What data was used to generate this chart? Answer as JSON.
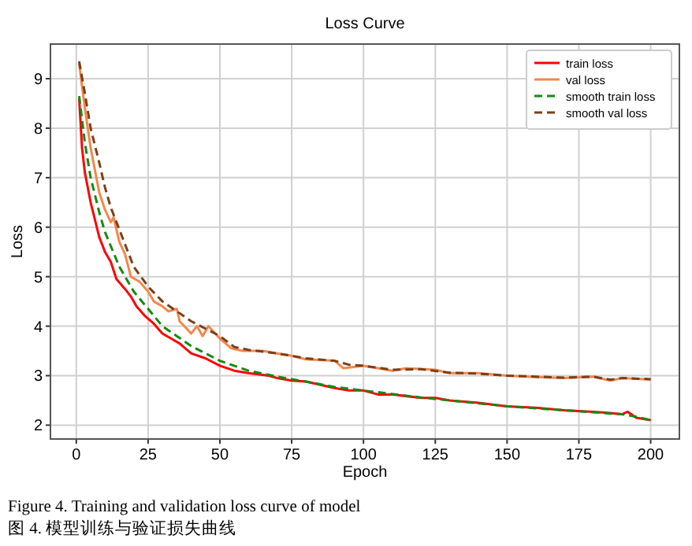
{
  "chart_data": {
    "type": "line",
    "title": "Loss Curve",
    "xlabel": "Epoch",
    "ylabel": "Loss",
    "xlim": [
      -9,
      210
    ],
    "ylim": [
      1.72,
      9.7
    ],
    "xticks": [
      0,
      25,
      50,
      75,
      100,
      125,
      150,
      175,
      200
    ],
    "yticks": [
      2,
      3,
      4,
      5,
      6,
      7,
      8,
      9
    ],
    "grid": true,
    "legend": "top right",
    "series": [
      {
        "name": "train loss",
        "color": "#ff0000",
        "line_style": "solid",
        "x": [
          1,
          2,
          3,
          5,
          8,
          10,
          12,
          14,
          17,
          19,
          21,
          24,
          27,
          30,
          33,
          36,
          40,
          45,
          50,
          55,
          60,
          67,
          70,
          75,
          80,
          90,
          95,
          100,
          105,
          110,
          120,
          125,
          130,
          140,
          150,
          160,
          170,
          180,
          185,
          190,
          192,
          195,
          200
        ],
        "values": [
          8.6,
          7.6,
          7.1,
          6.5,
          5.8,
          5.5,
          5.3,
          4.95,
          4.75,
          4.6,
          4.4,
          4.2,
          4.05,
          3.85,
          3.75,
          3.65,
          3.45,
          3.35,
          3.2,
          3.1,
          3.05,
          3.0,
          2.95,
          2.9,
          2.88,
          2.75,
          2.7,
          2.7,
          2.62,
          2.62,
          2.55,
          2.55,
          2.5,
          2.45,
          2.38,
          2.35,
          2.3,
          2.27,
          2.25,
          2.22,
          2.27,
          2.15,
          2.1
        ]
      },
      {
        "name": "val loss",
        "color": "#f4874b",
        "line_style": "solid",
        "x": [
          1,
          3,
          5,
          8,
          10,
          12,
          13,
          15,
          17,
          19,
          22,
          25,
          27,
          30,
          32,
          35,
          36,
          40,
          42,
          44,
          46,
          50,
          54,
          58,
          65,
          70,
          75,
          80,
          90,
          93,
          100,
          105,
          110,
          115,
          125,
          130,
          140,
          150,
          160,
          170,
          180,
          186,
          190,
          200
        ],
        "values": [
          9.3,
          8.4,
          7.6,
          6.7,
          6.35,
          6.1,
          6.2,
          5.7,
          5.45,
          5.0,
          4.9,
          4.7,
          4.5,
          4.4,
          4.3,
          4.35,
          4.1,
          3.85,
          4.0,
          3.8,
          4.0,
          3.75,
          3.55,
          3.5,
          3.5,
          3.45,
          3.4,
          3.33,
          3.3,
          3.15,
          3.2,
          3.15,
          3.1,
          3.15,
          3.12,
          3.05,
          3.05,
          3.0,
          2.97,
          2.95,
          2.98,
          2.9,
          2.95,
          2.92
        ]
      },
      {
        "name": "smooth train loss",
        "color": "#138a13",
        "line_style": "dashed",
        "x": [
          1,
          3,
          5,
          8,
          10,
          15,
          20,
          25,
          30,
          35,
          40,
          45,
          50,
          60,
          70,
          80,
          90,
          100,
          110,
          120,
          130,
          140,
          150,
          160,
          170,
          180,
          190,
          195,
          200
        ],
        "values": [
          8.65,
          7.7,
          7.0,
          6.3,
          5.9,
          5.2,
          4.7,
          4.35,
          4.0,
          3.8,
          3.6,
          3.45,
          3.3,
          3.1,
          2.98,
          2.88,
          2.77,
          2.7,
          2.63,
          2.56,
          2.5,
          2.44,
          2.38,
          2.34,
          2.3,
          2.26,
          2.22,
          2.17,
          2.1
        ]
      },
      {
        "name": "smooth val loss",
        "color": "#7b3f1a",
        "line_style": "dashed",
        "x": [
          1,
          3,
          5,
          8,
          10,
          12,
          15,
          18,
          20,
          25,
          30,
          35,
          40,
          45,
          50,
          55,
          60,
          70,
          80,
          90,
          95,
          100,
          110,
          120,
          130,
          140,
          150,
          160,
          170,
          180,
          186,
          190,
          200
        ],
        "values": [
          9.35,
          8.7,
          8.0,
          7.3,
          6.8,
          6.4,
          5.95,
          5.5,
          5.2,
          4.8,
          4.5,
          4.3,
          4.1,
          3.95,
          3.8,
          3.58,
          3.52,
          3.45,
          3.35,
          3.3,
          3.22,
          3.2,
          3.12,
          3.13,
          3.06,
          3.04,
          3.0,
          2.98,
          2.96,
          2.98,
          2.92,
          2.95,
          2.93
        ]
      }
    ],
    "annotations": [
      "Figure 4. Training and validation loss curve of model",
      "图 4. 模型训练与验证损失曲线"
    ]
  }
}
